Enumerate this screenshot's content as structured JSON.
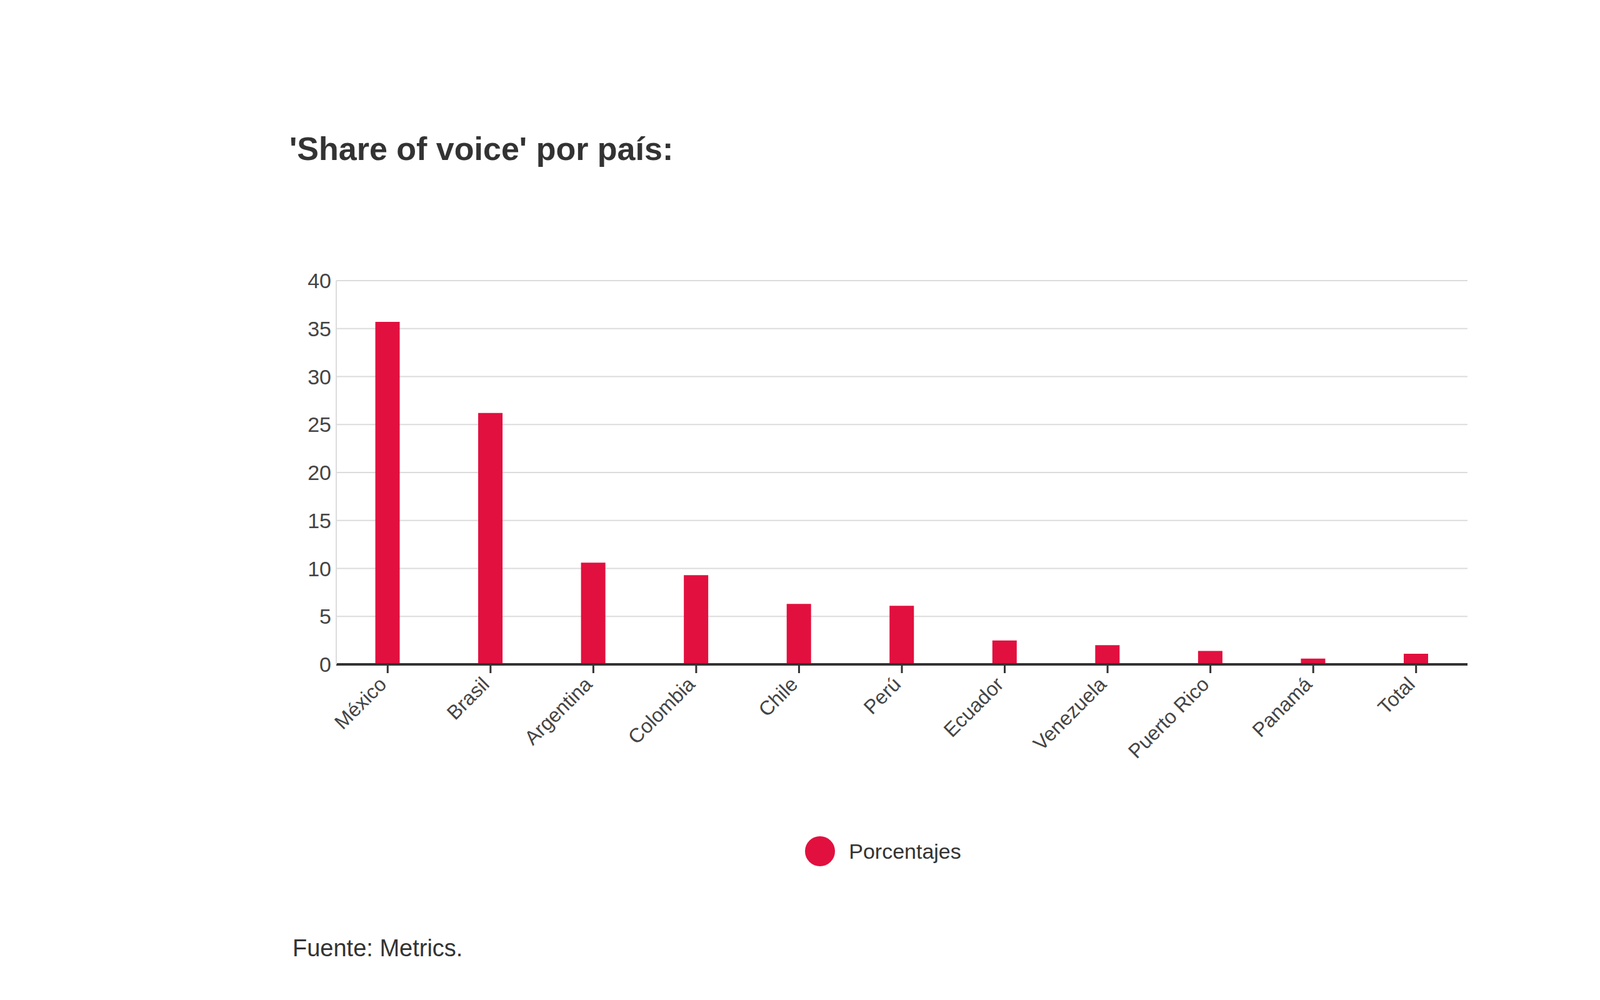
{
  "chart_data": {
    "type": "bar",
    "title": "'Share of voice' por país:",
    "categories": [
      "México",
      "Brasil",
      "Argentina",
      "Colombia",
      "Chile",
      "Perú",
      "Ecuador",
      "Venezuela",
      "Puerto Rico",
      "Panamá",
      "Total"
    ],
    "series": [
      {
        "name": "Porcentajes",
        "color": "#e2103f",
        "values": [
          35.7,
          26.2,
          10.6,
          9.3,
          6.3,
          6.1,
          2.5,
          2.0,
          1.4,
          0.6,
          1.1
        ]
      }
    ],
    "ylim": [
      0,
      40
    ],
    "yticks": [
      0,
      5,
      10,
      15,
      20,
      25,
      30,
      35,
      40
    ],
    "grid": true,
    "legend": "bottom",
    "source": "Fuente: Metrics."
  }
}
